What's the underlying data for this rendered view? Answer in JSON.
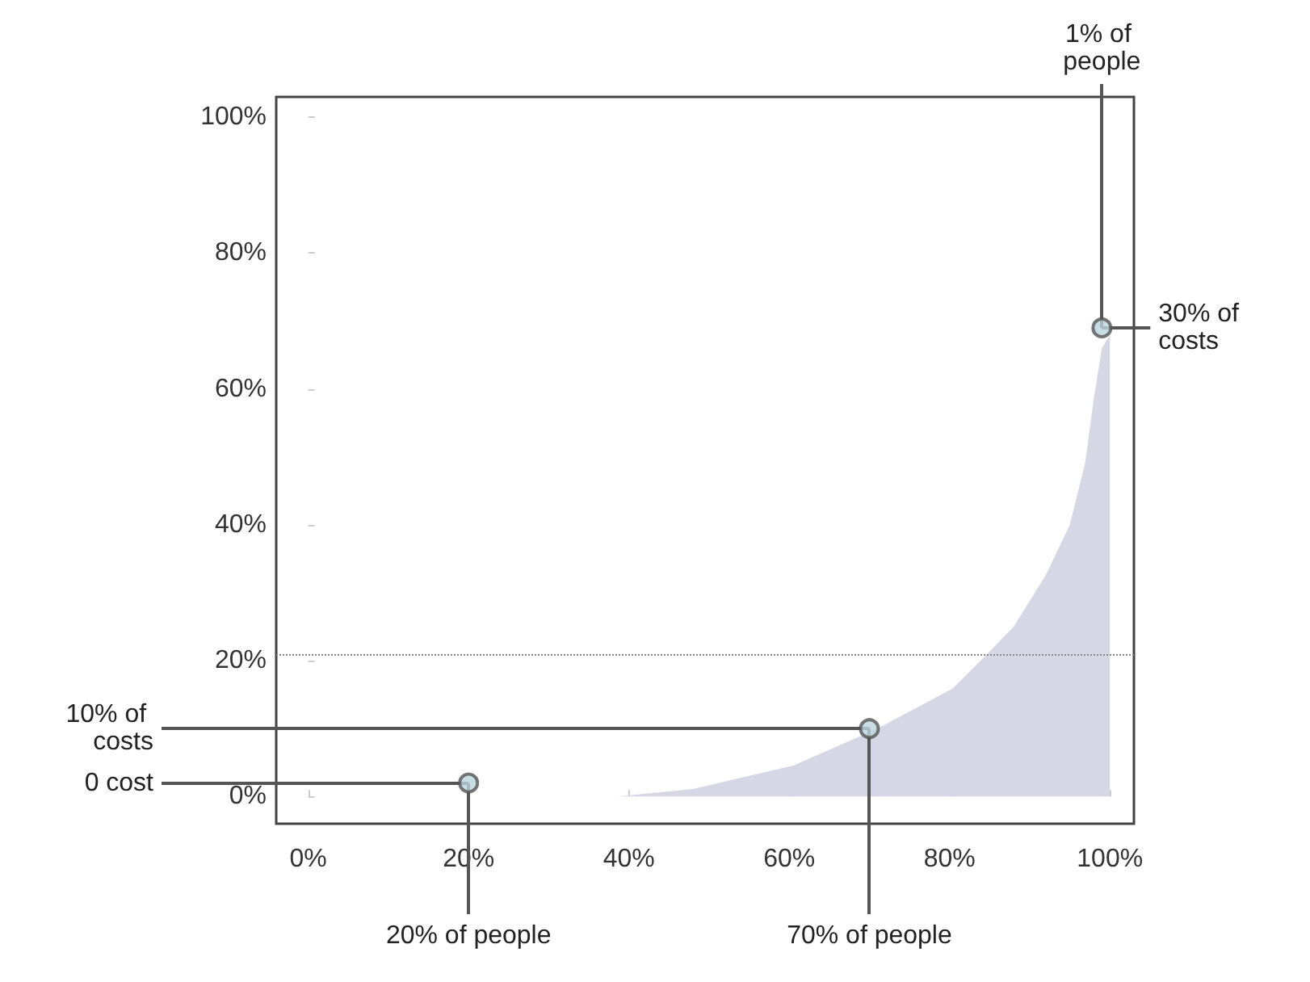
{
  "chart_data": {
    "type": "area",
    "series": [
      {
        "color": "#d6d6e4",
        "x": [
          38.6,
          48,
          60.6,
          71,
          80.4,
          84.3,
          88,
          92,
          95,
          96.9,
          98,
          99,
          100
        ],
        "values": [
          0,
          1.1,
          4.6,
          10,
          15.9,
          20.5,
          25,
          32.6,
          40,
          49,
          58.6,
          66,
          68
        ]
      },
      {
        "type": "scatter",
        "color": "#b9d3dc",
        "x": [
          20,
          70,
          99
        ],
        "values": [
          2,
          10,
          69
        ],
        "marker": "circle"
      }
    ],
    "xlim": [
      -4,
      103
    ],
    "ylim": [
      -4,
      103
    ],
    "xticks": [
      {
        "value": 0,
        "label": "0%"
      },
      {
        "value": 20,
        "label": "20%"
      },
      {
        "value": 40,
        "label": "40%"
      },
      {
        "value": 60,
        "label": "60%"
      },
      {
        "value": 80,
        "label": "80%"
      },
      {
        "value": 100,
        "label": "100%"
      }
    ],
    "yticks": [
      {
        "value": 0,
        "label": "0%"
      },
      {
        "value": 20,
        "label": "20%"
      },
      {
        "value": 40,
        "label": "40%"
      },
      {
        "value": 60,
        "label": "60%"
      },
      {
        "value": 80,
        "label": "80%"
      },
      {
        "value": 100,
        "label": "100%"
      }
    ],
    "ref_lines": [
      {
        "axis": "y",
        "value": 21,
        "line_style": "dotted",
        "color": "#888888"
      }
    ],
    "grid": false,
    "annotations": [
      {
        "text": "1% of people",
        "x": 99,
        "y": 69
      },
      {
        "text": "30% of costs",
        "x": 99,
        "y": 69
      },
      {
        "text": "10% of costs",
        "x": 70,
        "y": 10
      },
      {
        "text": "70% of people",
        "x": 70,
        "y": 10
      },
      {
        "text": "0 cost",
        "x": 20,
        "y": 2
      },
      {
        "text": "20% of people",
        "x": 20,
        "y": 2
      }
    ]
  }
}
